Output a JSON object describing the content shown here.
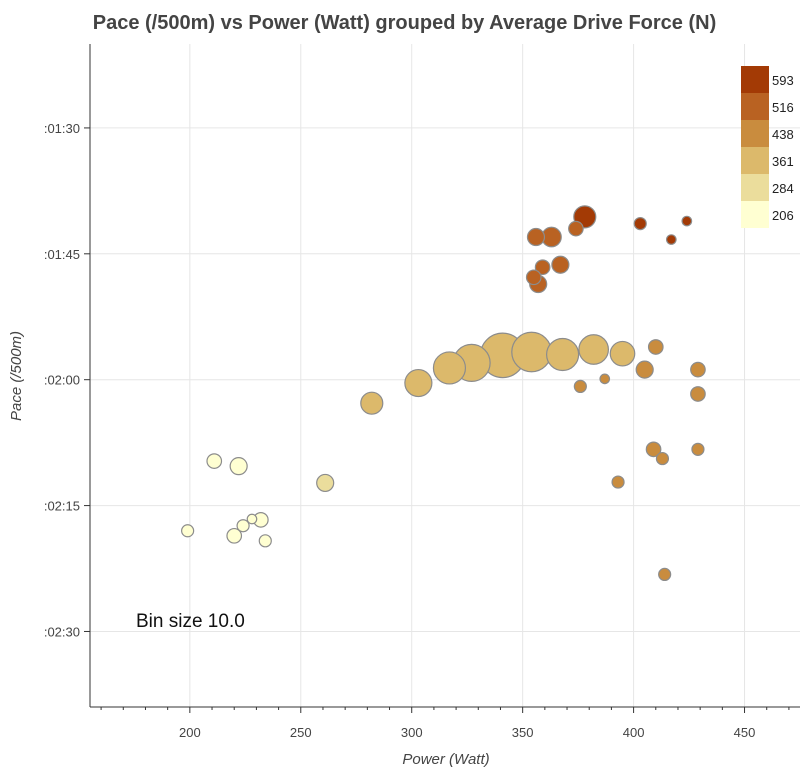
{
  "chart_data": {
    "type": "scatter",
    "title": "Pace (/500m) vs Power (Watt) grouped by Average Drive Force (N)",
    "xlabel": "Power (Watt)",
    "ylabel": "Pace (/500m)",
    "xlim": [
      155,
      475
    ],
    "ylim": [
      159,
      80
    ],
    "x_ticks": [
      200,
      250,
      300,
      350,
      400,
      450
    ],
    "y_ticks": [
      {
        "value": 90,
        "label": ":01:30"
      },
      {
        "value": 105,
        "label": ":01:45"
      },
      {
        "value": 120,
        "label": ":02:00"
      },
      {
        "value": 135,
        "label": ":02:15"
      },
      {
        "value": 150,
        "label": ":02:30"
      }
    ],
    "grid": true,
    "annotation": "Bin size 10.0",
    "legend": {
      "placement": "top-right",
      "entries": [
        {
          "label": "593",
          "color": "#a33a05"
        },
        {
          "label": "516",
          "color": "#b96222"
        },
        {
          "label": "438",
          "color": "#c98c3e"
        },
        {
          "label": "361",
          "color": "#dcb96b"
        },
        {
          "label": "284",
          "color": "#ebdd9c"
        },
        {
          "label": "206",
          "color": "#ffffd2"
        }
      ]
    },
    "points": [
      {
        "x": 199,
        "y": 138.0,
        "force": 206,
        "size": 2
      },
      {
        "x": 211,
        "y": 129.7,
        "force": 206,
        "size": 3
      },
      {
        "x": 222,
        "y": 130.3,
        "force": 206,
        "size": 4
      },
      {
        "x": 220,
        "y": 138.6,
        "force": 206,
        "size": 3
      },
      {
        "x": 224,
        "y": 137.4,
        "force": 206,
        "size": 2
      },
      {
        "x": 228,
        "y": 136.6,
        "force": 206,
        "size": 1
      },
      {
        "x": 232,
        "y": 136.7,
        "force": 206,
        "size": 3
      },
      {
        "x": 234,
        "y": 139.2,
        "force": 206,
        "size": 2
      },
      {
        "x": 261,
        "y": 132.3,
        "force": 284,
        "size": 4
      },
      {
        "x": 282,
        "y": 122.8,
        "force": 361,
        "size": 6
      },
      {
        "x": 303,
        "y": 120.4,
        "force": 361,
        "size": 8
      },
      {
        "x": 317,
        "y": 118.6,
        "force": 361,
        "size": 10
      },
      {
        "x": 327,
        "y": 118.0,
        "force": 361,
        "size": 12
      },
      {
        "x": 341,
        "y": 117.1,
        "force": 361,
        "size": 15
      },
      {
        "x": 354,
        "y": 116.7,
        "force": 361,
        "size": 13
      },
      {
        "x": 368,
        "y": 117.0,
        "force": 361,
        "size": 10
      },
      {
        "x": 382,
        "y": 116.4,
        "force": 361,
        "size": 9
      },
      {
        "x": 395,
        "y": 116.9,
        "force": 361,
        "size": 7
      },
      {
        "x": 405,
        "y": 118.8,
        "force": 438,
        "size": 4
      },
      {
        "x": 410,
        "y": 116.1,
        "force": 438,
        "size": 3
      },
      {
        "x": 429,
        "y": 118.8,
        "force": 438,
        "size": 3
      },
      {
        "x": 429,
        "y": 121.7,
        "force": 438,
        "size": 3
      },
      {
        "x": 387,
        "y": 119.9,
        "force": 438,
        "size": 1
      },
      {
        "x": 376,
        "y": 120.8,
        "force": 438,
        "size": 2
      },
      {
        "x": 409,
        "y": 128.3,
        "force": 438,
        "size": 3
      },
      {
        "x": 413,
        "y": 129.4,
        "force": 438,
        "size": 2
      },
      {
        "x": 429,
        "y": 128.3,
        "force": 438,
        "size": 2
      },
      {
        "x": 393,
        "y": 132.2,
        "force": 438,
        "size": 2
      },
      {
        "x": 414,
        "y": 143.2,
        "force": 438,
        "size": 2
      },
      {
        "x": 356,
        "y": 103.0,
        "force": 516,
        "size": 4
      },
      {
        "x": 363,
        "y": 103.0,
        "force": 516,
        "size": 5
      },
      {
        "x": 374,
        "y": 102.0,
        "force": 516,
        "size": 3
      },
      {
        "x": 378,
        "y": 100.6,
        "force": 593,
        "size": 6
      },
      {
        "x": 367,
        "y": 106.3,
        "force": 516,
        "size": 4
      },
      {
        "x": 359,
        "y": 106.6,
        "force": 516,
        "size": 3
      },
      {
        "x": 355,
        "y": 107.8,
        "force": 516,
        "size": 3
      },
      {
        "x": 357,
        "y": 108.6,
        "force": 516,
        "size": 4
      },
      {
        "x": 403,
        "y": 101.4,
        "force": 593,
        "size": 2
      },
      {
        "x": 417,
        "y": 103.3,
        "force": 593,
        "size": 1
      },
      {
        "x": 424,
        "y": 101.1,
        "force": 593,
        "size": 1
      }
    ]
  }
}
